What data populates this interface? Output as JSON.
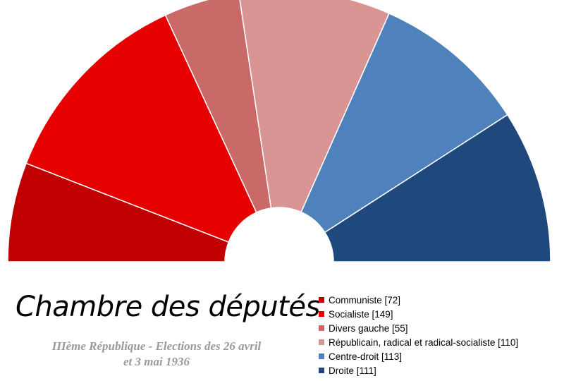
{
  "chart_data": {
    "type": "pie",
    "variant": "half-donut",
    "title": "Chambre des députés",
    "subtitle_lines": [
      "IIIème République - Elections des 26 avril",
      "et 3 mai 1936"
    ],
    "series": [
      {
        "name": "Communiste",
        "value": 72,
        "color": "#c00000",
        "legend_label": "Communiste [72]"
      },
      {
        "name": "Socialiste",
        "value": 149,
        "color": "#e60000",
        "legend_label": "Socialiste [149]"
      },
      {
        "name": "Divers gauche",
        "value": 55,
        "color": "#c96a68",
        "legend_label": "Divers gauche [55]"
      },
      {
        "name": "Républicain, radical et radical-socialiste",
        "value": 110,
        "color": "#d99594",
        "legend_label": "Républicain, radical et radical-socialiste [110]"
      },
      {
        "name": "Centre-droit",
        "value": 113,
        "color": "#4f81bd",
        "legend_label": "Centre-droit [113]"
      },
      {
        "name": "Droite",
        "value": 111,
        "color": "#1f497d",
        "legend_label": "Droite [111]"
      }
    ],
    "legend_position": "bottom-right"
  }
}
